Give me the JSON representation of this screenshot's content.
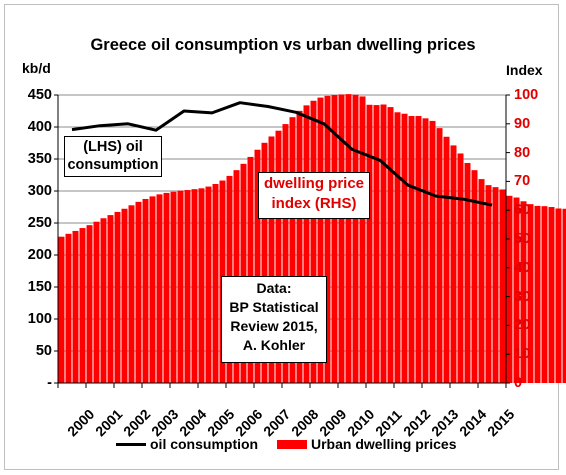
{
  "chart_data": {
    "type": "bar+line",
    "title": "Greece oil consumption vs urban dwelling prices",
    "y_left_label": "kb/d",
    "y_right_label": "Index",
    "y_left_ticks": [
      "450",
      "400",
      "350",
      "300",
      "250",
      "200",
      "150",
      "100",
      "50",
      "-"
    ],
    "y_right_ticks": [
      "100",
      "90",
      "80",
      "70",
      "60",
      "50",
      "40",
      "30",
      "20",
      "10",
      "0"
    ],
    "y_left_lim": [
      0,
      450
    ],
    "y_right_lim": [
      0,
      100
    ],
    "x_ticks": [
      "2000",
      "2001",
      "2002",
      "2003",
      "2004",
      "2005",
      "2006",
      "2007",
      "2008",
      "2009",
      "2010",
      "2011",
      "2012",
      "2013",
      "2014",
      "2015"
    ],
    "oil_consumption": {
      "name": "oil consumption",
      "color": "#000000",
      "x": [
        2000,
        2001,
        2002,
        2003,
        2004,
        2005,
        2006,
        2007,
        2008,
        2009,
        2010,
        2011,
        2012,
        2013,
        2014,
        2015
      ],
      "values": [
        396,
        402,
        405,
        395,
        425,
        422,
        438,
        432,
        423,
        405,
        365,
        348,
        309,
        292,
        287,
        278
      ]
    },
    "dwelling_prices": {
      "name": "Urban dwelling prices",
      "color": "#ff0000",
      "quarter_start": 2000.0,
      "quarters_per_year": 4,
      "values": [
        50.8,
        51.8,
        52.8,
        53.8,
        54.8,
        56.0,
        57.2,
        58.3,
        59.4,
        60.5,
        61.7,
        62.9,
        63.9,
        64.8,
        65.5,
        66.0,
        66.4,
        66.8,
        67.0,
        67.3,
        67.6,
        68.2,
        69.1,
        70.3,
        71.9,
        73.9,
        76.1,
        78.5,
        81.0,
        83.4,
        85.6,
        87.6,
        89.9,
        92.3,
        94.5,
        96.4,
        98.0,
        99.1,
        99.7,
        100.0,
        100.2,
        100.3,
        100.1,
        99.5,
        96.6,
        96.5,
        96.7,
        95.8,
        94.0,
        93.5,
        92.7,
        92.7,
        91.9,
        91.0,
        88.5,
        85.5,
        82.5,
        79.7,
        76.4,
        73.9,
        70.8,
        68.7,
        68.0,
        67.2,
        65.0,
        64.4,
        63.1,
        62.1,
        61.5,
        61.4,
        61.1,
        60.6,
        60.5,
        60.1,
        59.7,
        59.1,
        58.6
      ]
    }
  },
  "annotations": {
    "lhs_label_line1": "(LHS) oil",
    "lhs_label_line2": "consumption",
    "rhs_label_line1": "dwelling price",
    "rhs_label_line2": "index (RHS)",
    "data_line1": "Data:",
    "data_line2": "BP Statistical",
    "data_line3": "Review 2015,",
    "data_line4": "A. Kohler"
  },
  "legend": {
    "oil_label": "oil consumption",
    "dwelling_label": "Urban dwelling prices"
  }
}
